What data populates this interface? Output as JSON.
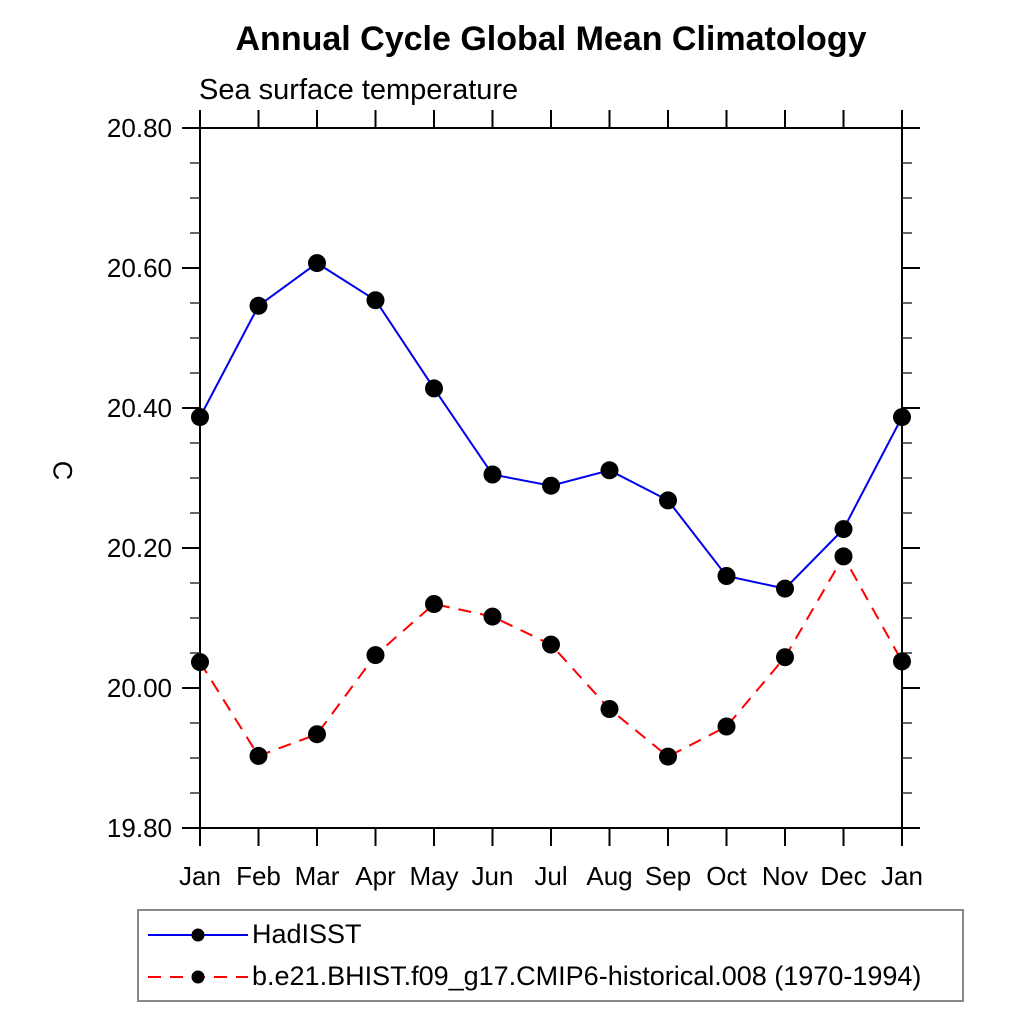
{
  "chart_data": {
    "type": "line",
    "title": "Annual Cycle Global Mean Climatology",
    "subtitle": "Sea surface temperature",
    "ylabel": "C",
    "xlabel": "",
    "categories": [
      "Jan",
      "Feb",
      "Mar",
      "Apr",
      "May",
      "Jun",
      "Jul",
      "Aug",
      "Sep",
      "Oct",
      "Nov",
      "Dec",
      "Jan"
    ],
    "ylim": [
      19.8,
      20.8
    ],
    "ytick_major": [
      19.8,
      20.0,
      20.2,
      20.4,
      20.6,
      20.8
    ],
    "ytick_labels": [
      "19.80",
      "20.00",
      "20.20",
      "20.40",
      "20.60",
      "20.80"
    ],
    "ytick_minor_step": 0.05,
    "grid": false,
    "legend_position": "bottom-left-box",
    "axis_color": "#000000",
    "series": [
      {
        "name": "HadISST",
        "color": "#0000ee",
        "line_style": "solid",
        "marker": "filled-circle",
        "marker_color": "#000000",
        "values": [
          20.387,
          20.546,
          20.607,
          20.554,
          20.428,
          20.305,
          20.289,
          20.311,
          20.268,
          20.16,
          20.142,
          20.227,
          20.387
        ]
      },
      {
        "name": "b.e21.BHIST.f09_g17.CMIP6-historical.008 (1970-1994)",
        "color": "#ff0000",
        "line_style": "dashed",
        "marker": "filled-circle",
        "marker_color": "#000000",
        "values": [
          20.037,
          19.903,
          19.934,
          20.047,
          20.12,
          20.102,
          20.062,
          19.97,
          19.902,
          19.945,
          20.044,
          20.188,
          20.038
        ]
      }
    ]
  }
}
